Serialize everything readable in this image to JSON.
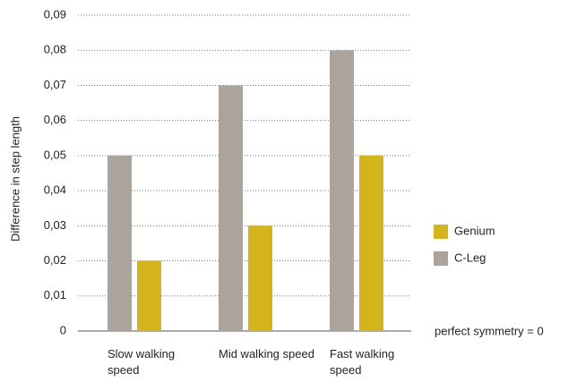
{
  "chart_data": {
    "type": "bar",
    "y_label": "Difference in step length",
    "categories": [
      "Slow walking speed",
      "Mid walking speed",
      "Fast walking speed"
    ],
    "series": [
      {
        "name": "C-Leg",
        "color": "#aba49c",
        "values": [
          0.05,
          0.07,
          0.08
        ]
      },
      {
        "name": "Genium",
        "color": "#d4b41c",
        "values": [
          0.02,
          0.03,
          0.05
        ]
      }
    ],
    "legend_order": [
      "Genium",
      "C-Leg"
    ],
    "annotation": "perfect symmetry = 0",
    "ylim": [
      0,
      0.09
    ],
    "yticks": [
      0,
      {
        "value": 0.01,
        "label": "0,01"
      },
      {
        "value": 0.02,
        "label": "0,02"
      },
      {
        "value": 0.03,
        "label": "0,03"
      },
      {
        "value": 0.04,
        "label": "0,04"
      },
      {
        "value": 0.05,
        "label": "0,05"
      },
      {
        "value": 0.06,
        "label": "0,06"
      },
      {
        "value": 0.07,
        "label": "0,07"
      },
      {
        "value": 0.08,
        "label": "0,08"
      },
      {
        "value": 0.09,
        "label": "0,09"
      }
    ],
    "grid": true
  }
}
